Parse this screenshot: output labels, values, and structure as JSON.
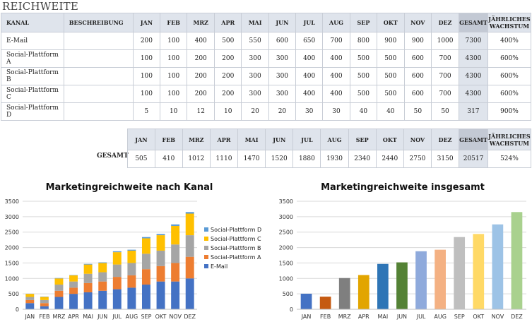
{
  "title": "REICHWEITE",
  "table": {
    "headers": [
      "KANAL",
      "BESCHREIBUNG",
      "JAN",
      "FEB",
      "MRZ",
      "APR",
      "MAI",
      "JUN",
      "JUL",
      "AUG",
      "SEP",
      "OKT",
      "NOV",
      "DEZ",
      "GESAMT",
      "JÄHRLICHES WACHSTUM"
    ],
    "rows": [
      {
        "kanal": "E-Mail",
        "beschreibung": "",
        "values": [
          200,
          100,
          400,
          500,
          550,
          600,
          650,
          700,
          800,
          900,
          900,
          1000
        ],
        "gesamt": "7300",
        "wachstum": "400%"
      },
      {
        "kanal": "Social-Plattform A",
        "beschreibung": "",
        "values": [
          100,
          100,
          200,
          200,
          300,
          300,
          400,
          400,
          500,
          500,
          600,
          700
        ],
        "gesamt": "4300",
        "wachstum": "600%"
      },
      {
        "kanal": "Social-Plattform B",
        "beschreibung": "",
        "values": [
          100,
          100,
          200,
          200,
          300,
          300,
          400,
          400,
          500,
          500,
          600,
          700
        ],
        "gesamt": "4300",
        "wachstum": "600%"
      },
      {
        "kanal": "Social-Plattform C",
        "beschreibung": "",
        "values": [
          100,
          100,
          200,
          200,
          300,
          300,
          400,
          400,
          500,
          500,
          600,
          700
        ],
        "gesamt": "4300",
        "wachstum": "600%"
      },
      {
        "kanal": "Social-Plattform D",
        "beschreibung": "",
        "values": [
          5,
          10,
          12,
          10,
          20,
          20,
          30,
          30,
          40,
          40,
          50,
          50
        ],
        "gesamt": "317",
        "wachstum": "900%"
      }
    ]
  },
  "summary": {
    "label": "GESAMT",
    "headers": [
      "JAN",
      "FEB",
      "MRZ",
      "APR",
      "MAI",
      "JUN",
      "JUL",
      "AUG",
      "SEP",
      "OKT",
      "NOV",
      "DEZ",
      "GESAMT",
      "JÄHRLICHES WACHSTUM"
    ],
    "values": [
      "505",
      "410",
      "1012",
      "1110",
      "1470",
      "1520",
      "1880",
      "1930",
      "2340",
      "2440",
      "2750",
      "3150"
    ],
    "gesamt": "20517",
    "wachstum": "524%"
  },
  "chart_data": [
    {
      "type": "bar",
      "stacked": true,
      "title": "Marketingreichweite nach Kanal",
      "categories": [
        "JAN",
        "FEB",
        "MRZ",
        "APR",
        "MAI",
        "JUN",
        "JUL",
        "AUG",
        "SEP",
        "OKT",
        "NOV",
        "DEZ"
      ],
      "ylim": [
        0,
        3500
      ],
      "yticks": [
        "0",
        "500",
        "1000",
        "1500",
        "2000",
        "2500",
        "3000",
        "3500"
      ],
      "legend_position": "right",
      "series": [
        {
          "name": "E-Mail",
          "color": "#4472c4",
          "values": [
            200,
            100,
            400,
            500,
            550,
            600,
            650,
            700,
            800,
            900,
            900,
            1000
          ]
        },
        {
          "name": "Social-Plattform A",
          "color": "#ed7d31",
          "values": [
            100,
            100,
            200,
            200,
            300,
            300,
            400,
            400,
            500,
            500,
            600,
            700
          ]
        },
        {
          "name": "Social-Plattform B",
          "color": "#a5a5a5",
          "values": [
            100,
            100,
            200,
            200,
            300,
            300,
            400,
            400,
            500,
            500,
            600,
            700
          ]
        },
        {
          "name": "Social-Plattform C",
          "color": "#ffc000",
          "values": [
            100,
            100,
            200,
            200,
            300,
            300,
            400,
            400,
            500,
            500,
            600,
            700
          ]
        },
        {
          "name": "Social-Plattform D",
          "color": "#5b9bd5",
          "values": [
            5,
            10,
            12,
            10,
            20,
            20,
            30,
            30,
            40,
            40,
            50,
            50
          ]
        }
      ]
    },
    {
      "type": "bar",
      "title": "Marketingreichweite insgesamt",
      "categories": [
        "JAN",
        "FEB",
        "MRZ",
        "APR",
        "MAI",
        "JUN",
        "JUL",
        "AUG",
        "SEP",
        "OKT",
        "NOV",
        "DEZ"
      ],
      "ylim": [
        0,
        3500
      ],
      "yticks": [
        "0",
        "500",
        "1000",
        "1500",
        "2000",
        "2500",
        "3000",
        "3500"
      ],
      "values": [
        505,
        410,
        1012,
        1110,
        1470,
        1520,
        1880,
        1930,
        2340,
        2440,
        2750,
        3150
      ],
      "colors": [
        "#4472c4",
        "#c55a11",
        "#7f7f7f",
        "#e2a500",
        "#2e75b6",
        "#548235",
        "#8faadc",
        "#f4b183",
        "#bfbfbf",
        "#ffd966",
        "#9dc3e6",
        "#a9d18e"
      ]
    }
  ]
}
